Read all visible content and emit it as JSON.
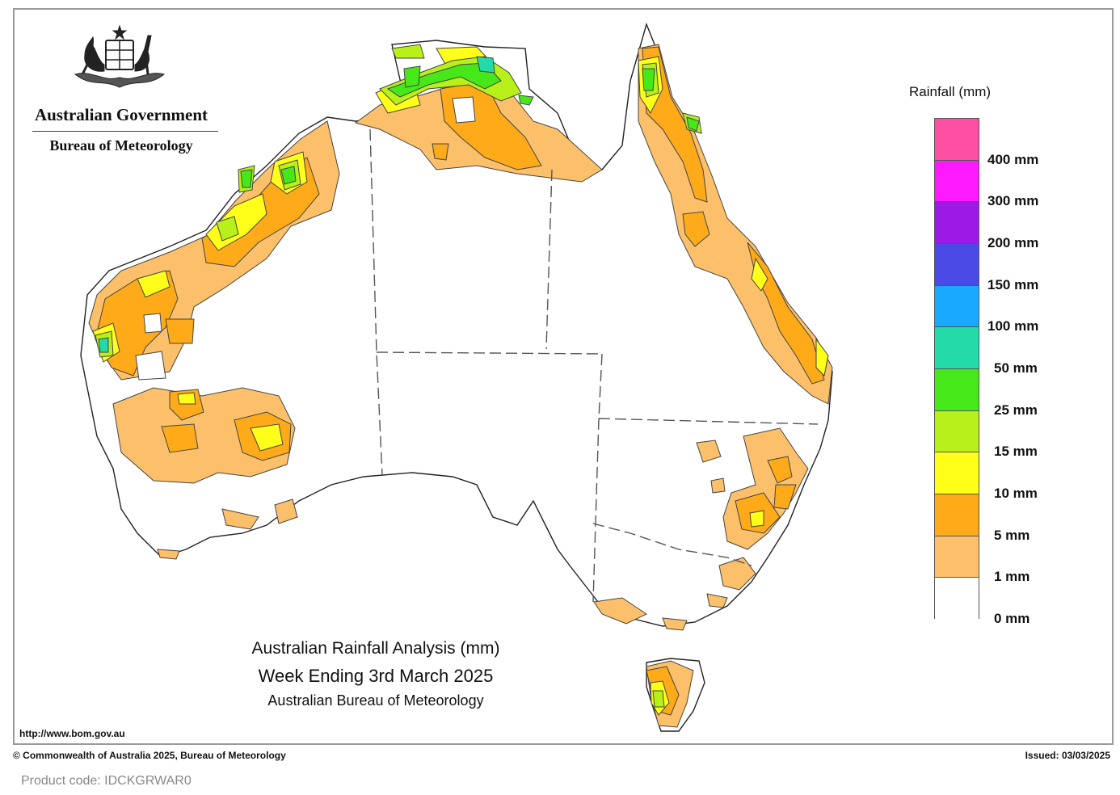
{
  "header": {
    "government": "Australian Government",
    "bureau": "Bureau of Meteorology"
  },
  "map": {
    "title": "Australian Rainfall Analysis (mm)",
    "period": "Week Ending 3rd March 2025",
    "source": "Australian Bureau of Meteorology",
    "url": "http://www.bom.gov.au"
  },
  "legend": {
    "title": "Rainfall (mm)",
    "classes": [
      {
        "label": "400 mm",
        "color": "#ff4fa3"
      },
      {
        "label": "300 mm",
        "color": "#ff19ff"
      },
      {
        "label": "200 mm",
        "color": "#9c19e6"
      },
      {
        "label": "150 mm",
        "color": "#4a4ae6"
      },
      {
        "label": "100 mm",
        "color": "#19aaff"
      },
      {
        "label": "50 mm",
        "color": "#22dba8"
      },
      {
        "label": "25 mm",
        "color": "#47e81a"
      },
      {
        "label": "15 mm",
        "color": "#b8f01a"
      },
      {
        "label": "10 mm",
        "color": "#ffff19"
      },
      {
        "label": "5 mm",
        "color": "#ffaa19"
      },
      {
        "label": "1 mm",
        "color": "#fcc06a"
      },
      {
        "label": "0 mm",
        "color": "#ffffff"
      }
    ]
  },
  "footer": {
    "copyright": "© Commonwealth of Australia 2025, Bureau of Meteorology",
    "issued": "Issued: 03/03/2025",
    "product_code": "Product code: IDCKGRWAR0"
  }
}
